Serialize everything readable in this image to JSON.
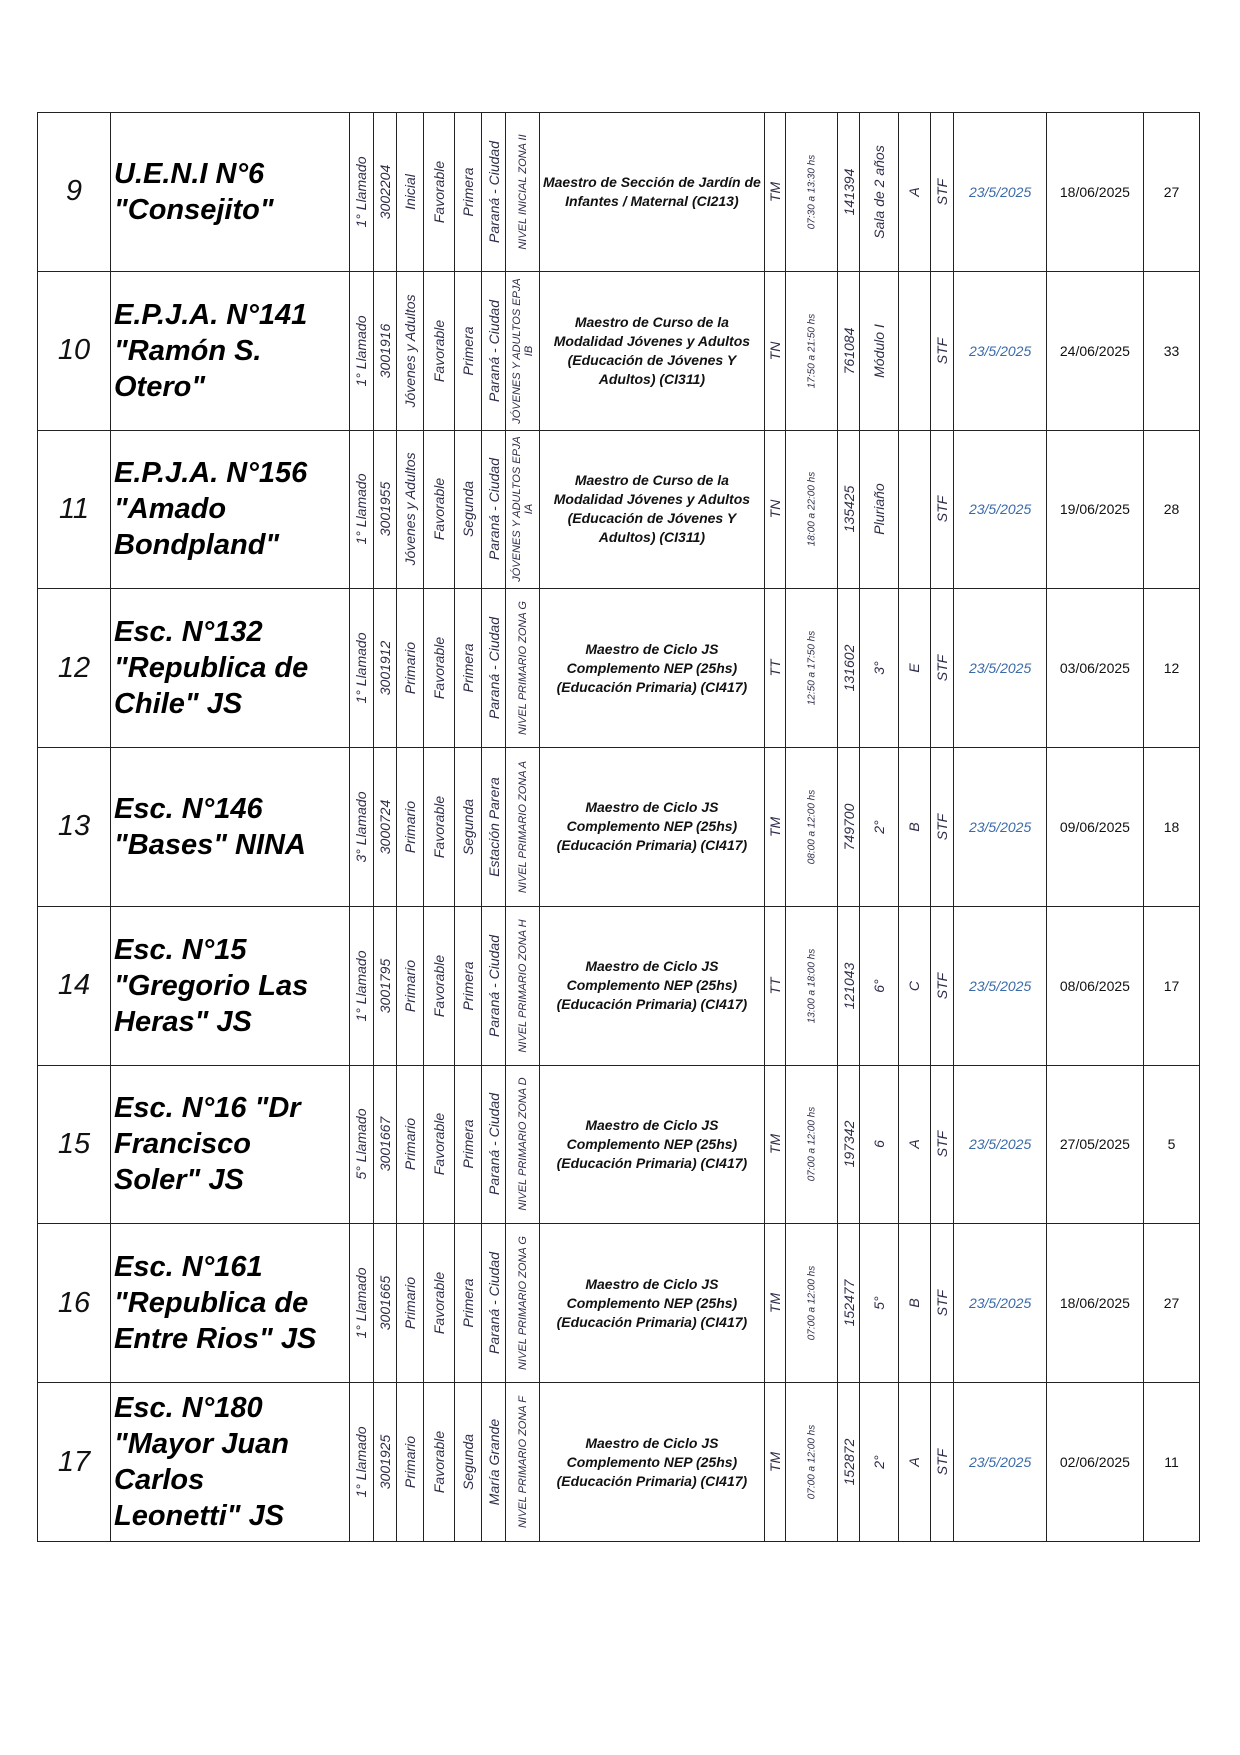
{
  "rows": [
    {
      "num": "9",
      "school": [
        "U.E.N.I N°6",
        "\"Consejito\""
      ],
      "llamado": "1° Llamado",
      "code": "3002204",
      "nivel": "Inicial",
      "estado": "Favorable",
      "categoria": "Primera",
      "localidad": "Paraná - Ciudad",
      "zona": "NIVEL INICIAL ZONA II",
      "cargo": "Maestro de Sección de Jardín de Infantes / Maternal (CI213)",
      "turno": "TM",
      "horario": "07:30 a 13:30 hs",
      "id": "141394",
      "curso": "Sala de 2 años",
      "seccion": "A",
      "tipo": "STF",
      "fecha_pub": "23/5/2025",
      "fecha_inicio": "18/06/2025",
      "dias": "27"
    },
    {
      "num": "10",
      "school": [
        "E.P.J.A. N°141",
        "\"Ramón S.",
        "Otero\""
      ],
      "llamado": "1° Llamado",
      "code": "3001916",
      "nivel": "Jóvenes y Adultos",
      "estado": "Favorable",
      "categoria": "Primera",
      "localidad": "Paraná - Ciudad",
      "zona": "JÓVENES Y ADULTOS EPJA IB",
      "cargo": "Maestro de Curso de la Modalidad Jóvenes y Adultos (Educación de Jóvenes Y Adultos) (CI311)",
      "turno": "TN",
      "horario": "17:50 a 21:50 hs",
      "id": "761084",
      "curso": "Módulo I",
      "seccion": "",
      "tipo": "STF",
      "fecha_pub": "23/5/2025",
      "fecha_inicio": "24/06/2025",
      "dias": "33"
    },
    {
      "num": "11",
      "school": [
        "E.P.J.A. N°156",
        "\"Amado",
        "Bondpland\""
      ],
      "llamado": "1° Llamado",
      "code": "3001955",
      "nivel": "Jóvenes y Adultos",
      "estado": "Favorable",
      "categoria": "Segunda",
      "localidad": "Paraná - Ciudad",
      "zona": "JÓVENES Y ADULTOS EPJA IA",
      "cargo": "Maestro de Curso de la Modalidad Jóvenes y Adultos (Educación de Jóvenes Y Adultos) (CI311)",
      "turno": "TN",
      "horario": "18:00 a 22:00 hs",
      "id": "135425",
      "curso": "Pluriaño",
      "seccion": "",
      "tipo": "STF",
      "fecha_pub": "23/5/2025",
      "fecha_inicio": "19/06/2025",
      "dias": "28"
    },
    {
      "num": "12",
      "school": [
        "Esc. N°132",
        "\"Republica de",
        "Chile\" JS"
      ],
      "llamado": "1° Llamado",
      "code": "3001912",
      "nivel": "Primario",
      "estado": "Favorable",
      "categoria": "Primera",
      "localidad": "Paraná - Ciudad",
      "zona": "NIVEL PRIMARIO ZONA G",
      "cargo": "Maestro de Ciclo JS Complemento NEP (25hs) (Educación Primaria) (CI417)",
      "turno": "TT",
      "horario": "12:50 a 17:50 hs",
      "id": "131602",
      "curso": "3°",
      "seccion": "E",
      "tipo": "STF",
      "fecha_pub": "23/5/2025",
      "fecha_inicio": "03/06/2025",
      "dias": "12"
    },
    {
      "num": "13",
      "school": [
        "Esc. N°146",
        "\"Bases\" NINA"
      ],
      "llamado": "3° Llamado",
      "code": "3000724",
      "nivel": "Primario",
      "estado": "Favorable",
      "categoria": "Segunda",
      "localidad": "Estación Parera",
      "zona": "NIVEL PRIMARIO ZONA A",
      "cargo": "Maestro de Ciclo JS Complemento NEP (25hs) (Educación Primaria) (CI417)",
      "turno": "TM",
      "horario": "08:00 a 12:00 hs",
      "id": "749700",
      "curso": "2°",
      "seccion": "B",
      "tipo": "STF",
      "fecha_pub": "23/5/2025",
      "fecha_inicio": "09/06/2025",
      "dias": "18"
    },
    {
      "num": "14",
      "school": [
        "Esc. N°15",
        "\"Gregorio Las",
        "Heras\" JS"
      ],
      "llamado": "1° Llamado",
      "code": "3001795",
      "nivel": "Primario",
      "estado": "Favorable",
      "categoria": "Primera",
      "localidad": "Paraná - Ciudad",
      "zona": "NIVEL PRIMARIO ZONA H",
      "cargo": "Maestro de Ciclo JS Complemento NEP (25hs) (Educación Primaria) (CI417)",
      "turno": "TT",
      "horario": "13:00 a 18:00 hs",
      "id": "121043",
      "curso": "6°",
      "seccion": "C",
      "tipo": "STF",
      "fecha_pub": "23/5/2025",
      "fecha_inicio": "08/06/2025",
      "dias": "17"
    },
    {
      "num": "15",
      "school": [
        "Esc. N°16 \"Dr",
        "Francisco",
        "Soler\" JS"
      ],
      "llamado": "5° Llamado",
      "code": "3001667",
      "nivel": "Primario",
      "estado": "Favorable",
      "categoria": "Primera",
      "localidad": "Paraná - Ciudad",
      "zona": "NIVEL PRIMARIO ZONA D",
      "cargo": "Maestro de Ciclo JS Complemento NEP (25hs) (Educación Primaria) (CI417)",
      "turno": "TM",
      "horario": "07:00 a 12:00 hs",
      "id": "197342",
      "curso": "6",
      "seccion": "A",
      "tipo": "STF",
      "fecha_pub": "23/5/2025",
      "fecha_inicio": "27/05/2025",
      "dias": "5"
    },
    {
      "num": "16",
      "school": [
        "Esc. N°161",
        "\"Republica de",
        "Entre Rios\" JS"
      ],
      "llamado": "1° Llamado",
      "code": "3001665",
      "nivel": "Primario",
      "estado": "Favorable",
      "categoria": "Primera",
      "localidad": "Paraná - Ciudad",
      "zona": "NIVEL PRIMARIO ZONA G",
      "cargo": "Maestro de Ciclo JS Complemento NEP (25hs) (Educación Primaria) (CI417)",
      "turno": "TM",
      "horario": "07:00 a 12:00 hs",
      "id": "152477",
      "curso": "5°",
      "seccion": "B",
      "tipo": "STF",
      "fecha_pub": "23/5/2025",
      "fecha_inicio": "18/06/2025",
      "dias": "27"
    },
    {
      "num": "17",
      "school": [
        "Esc. N°180",
        "\"Mayor Juan",
        "Carlos",
        "Leonetti\" JS"
      ],
      "llamado": "1° Llamado",
      "code": "3001925",
      "nivel": "Primario",
      "estado": "Favorable",
      "categoria": "Segunda",
      "localidad": "María Grande",
      "zona": "NIVEL PRIMARIO ZONA F",
      "cargo": "Maestro de Ciclo JS Complemento NEP (25hs) (Educación Primaria) (CI417)",
      "turno": "TM",
      "horario": "07:00 a 12:00 hs",
      "id": "152872",
      "curso": "2°",
      "seccion": "A",
      "tipo": "STF",
      "fecha_pub": "23/5/2025",
      "fecha_inicio": "02/06/2025",
      "dias": "11"
    }
  ]
}
